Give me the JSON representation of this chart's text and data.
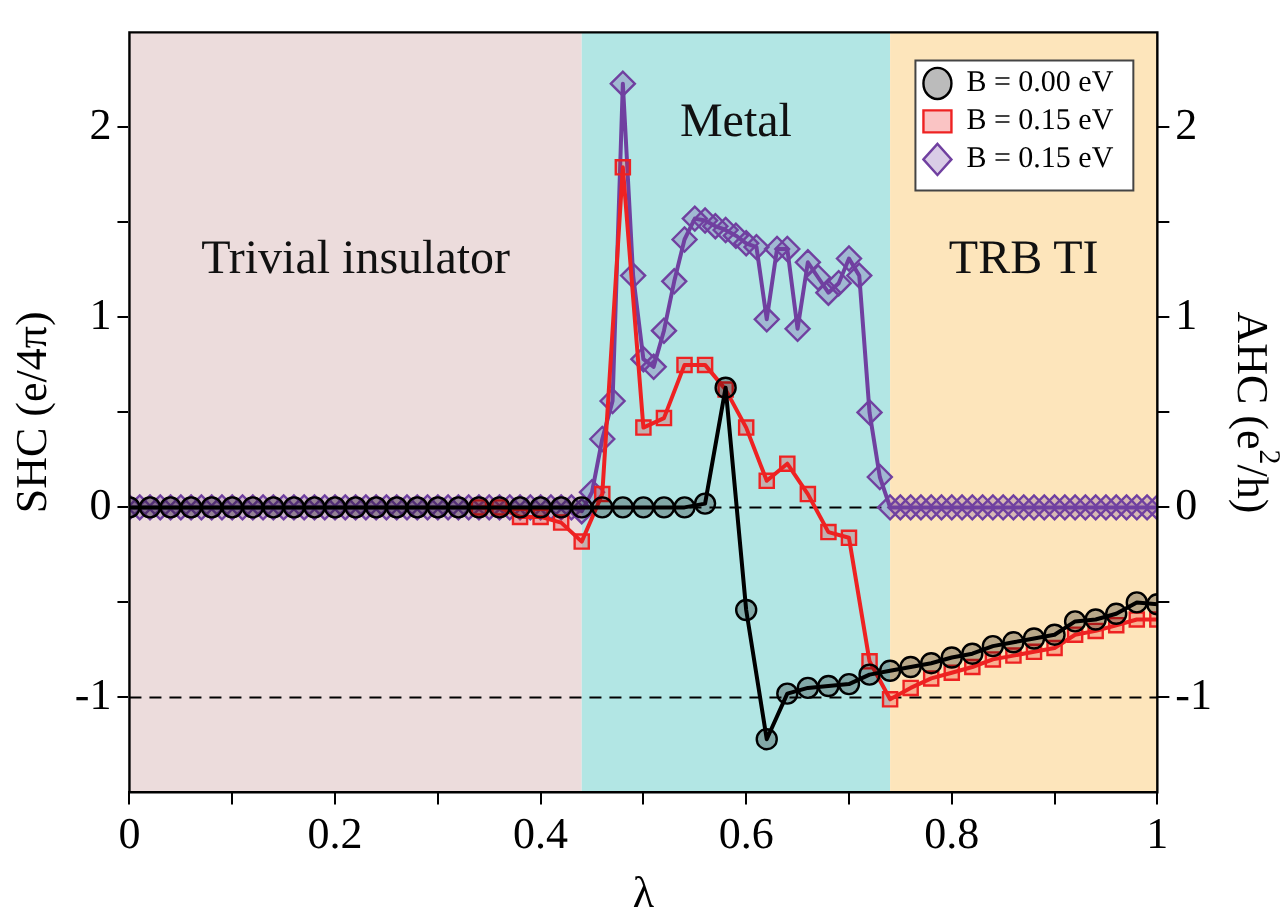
{
  "chart_data": {
    "type": "line",
    "xlabel": "λ",
    "ylabel": "SHC (e/4π)",
    "y2label": "AHC (e$^{2}$/h)",
    "x": [
      0,
      0.02,
      0.04,
      0.06,
      0.08,
      0.1,
      0.12,
      0.14,
      0.16,
      0.18,
      0.2,
      0.22,
      0.24,
      0.26,
      0.28,
      0.3,
      0.32,
      0.34,
      0.36,
      0.38,
      0.4,
      0.42,
      0.44,
      0.46,
      0.48,
      0.5,
      0.52,
      0.54,
      0.56,
      0.58,
      0.6,
      0.62,
      0.64,
      0.66,
      0.68,
      0.7,
      0.72,
      0.74,
      0.76,
      0.78,
      0.8,
      0.82,
      0.84,
      0.86,
      0.88,
      0.9,
      0.92,
      0.94,
      0.96,
      0.98,
      1
    ],
    "series": [
      {
        "name": "B = 0.00 eV",
        "color": "#000000",
        "marker": "circle",
        "values": [
          0,
          0,
          0,
          0,
          0,
          0,
          0,
          0,
          0,
          0,
          0,
          0,
          0,
          0,
          0,
          0,
          0,
          0,
          0,
          0,
          0,
          0,
          0,
          0,
          0,
          0,
          0,
          0,
          0.02,
          0.63,
          -0.54,
          -1.22,
          -0.98,
          -0.95,
          -0.94,
          -0.93,
          -0.88,
          -0.86,
          -0.84,
          -0.82,
          -0.79,
          -0.77,
          -0.73,
          -0.71,
          -0.69,
          -0.67,
          -0.6,
          -0.59,
          -0.56,
          -0.5,
          -0.51
        ]
      },
      {
        "name": "B = 0.15 eV",
        "color": "#ee2222",
        "marker": "square",
        "values": [
          null,
          null,
          null,
          null,
          null,
          null,
          null,
          null,
          null,
          null,
          null,
          null,
          null,
          null,
          null,
          null,
          null,
          0,
          0,
          -0.05,
          -0.05,
          -0.08,
          -0.18,
          0.07,
          1.79,
          0.42,
          0.47,
          0.75,
          0.75,
          0.62,
          0.42,
          0.14,
          0.23,
          0.07,
          -0.13,
          -0.16,
          -0.81,
          -1.01,
          -0.95,
          -0.9,
          -0.87,
          -0.84,
          -0.8,
          -0.78,
          -0.76,
          -0.74,
          -0.67,
          -0.65,
          -0.62,
          -0.59,
          -0.59
        ]
      },
      {
        "name": "B = 0.15 eV",
        "color": "#7040a0",
        "marker": "diamond",
        "x": [
          0,
          0.01,
          0.02,
          0.03,
          0.04,
          0.05,
          0.06,
          0.07,
          0.08,
          0.09,
          0.1,
          0.11,
          0.12,
          0.13,
          0.14,
          0.15,
          0.16,
          0.17,
          0.18,
          0.19,
          0.2,
          0.21,
          0.22,
          0.23,
          0.24,
          0.25,
          0.26,
          0.27,
          0.28,
          0.29,
          0.3,
          0.31,
          0.32,
          0.33,
          0.34,
          0.35,
          0.36,
          0.37,
          0.38,
          0.39,
          0.4,
          0.41,
          0.42,
          0.43,
          0.44,
          0.45,
          0.46,
          0.47,
          0.48,
          0.49,
          0.5,
          0.51,
          0.52,
          0.53,
          0.54,
          0.55,
          0.56,
          0.57,
          0.58,
          0.59,
          0.6,
          0.61,
          0.62,
          0.63,
          0.64,
          0.65,
          0.66,
          0.67,
          0.68,
          0.69,
          0.7,
          0.71,
          0.72,
          0.73,
          0.74,
          0.75,
          0.76,
          0.77,
          0.78,
          0.79,
          0.8,
          0.81,
          0.82,
          0.83,
          0.84,
          0.85,
          0.86,
          0.87,
          0.88,
          0.89,
          0.9,
          0.91,
          0.92,
          0.93,
          0.94,
          0.95,
          0.96,
          0.97,
          0.98,
          0.99,
          1
        ],
        "values": [
          0,
          0,
          0,
          0,
          0,
          0,
          0,
          0,
          0,
          0,
          0,
          0,
          0,
          0,
          0,
          0,
          0,
          0,
          0,
          0,
          0,
          0,
          0,
          0,
          0,
          0,
          0,
          0,
          0,
          0,
          0,
          0,
          0,
          0,
          0,
          0,
          0,
          0,
          0,
          0,
          0,
          0,
          0,
          0,
          -0.02,
          0.08,
          0.36,
          0.56,
          2.23,
          1.22,
          0.78,
          0.74,
          0.93,
          1.19,
          1.41,
          1.52,
          1.51,
          1.48,
          1.46,
          1.43,
          1.39,
          1.37,
          0.99,
          1.36,
          1.36,
          0.94,
          1.29,
          1.21,
          1.13,
          1.18,
          1.31,
          1.22,
          0.5,
          0.16,
          0,
          0,
          0,
          0,
          0,
          0,
          0,
          0,
          0,
          0,
          0,
          0,
          0,
          0,
          0,
          0,
          0,
          0,
          0,
          0,
          0,
          0,
          0,
          0,
          0,
          0,
          0
        ]
      }
    ],
    "xlim": [
      0,
      1
    ],
    "xticks": [
      0,
      {
        "value": 0.1,
        "label": null
      },
      0.2,
      {
        "value": 0.3,
        "label": null
      },
      0.4,
      {
        "value": 0.5,
        "label": null
      },
      0.6,
      {
        "value": 0.7,
        "label": null
      },
      0.8,
      {
        "value": 0.9,
        "label": null
      },
      1
    ],
    "ylim": [
      -1.5,
      2.5
    ],
    "yticks": [
      -1,
      {
        "value": -0.5,
        "label": null
      },
      0,
      {
        "value": 0.5,
        "label": null
      },
      1,
      {
        "value": 1.5,
        "label": null
      },
      2
    ],
    "y2lim": [
      -1.5,
      2.5
    ],
    "y2ticks": [
      -1,
      {
        "value": -0.5,
        "label": null
      },
      0,
      {
        "value": 0.5,
        "label": null
      },
      1,
      {
        "value": 1.5,
        "label": null
      },
      2
    ],
    "bands": [
      {
        "axis": "x",
        "from": 0,
        "to": 0.44,
        "label": "Trivial insulator",
        "color": "#ecdcdc"
      },
      {
        "axis": "x",
        "from": 0.44,
        "to": 0.74,
        "label": "Metal",
        "color": "#b2e6e4"
      },
      {
        "axis": "x",
        "from": 0.74,
        "to": 1,
        "label": "TRB TI",
        "color": "#fde5bb"
      }
    ],
    "ref_lines": [
      {
        "axis": "y",
        "value": 0,
        "line_style": "dashed",
        "color": "#000000"
      },
      {
        "axis": "y",
        "value": -1,
        "line_style": "dashed",
        "color": "#000000"
      }
    ],
    "grid": false,
    "legend": "top right",
    "line_style": "solid"
  }
}
